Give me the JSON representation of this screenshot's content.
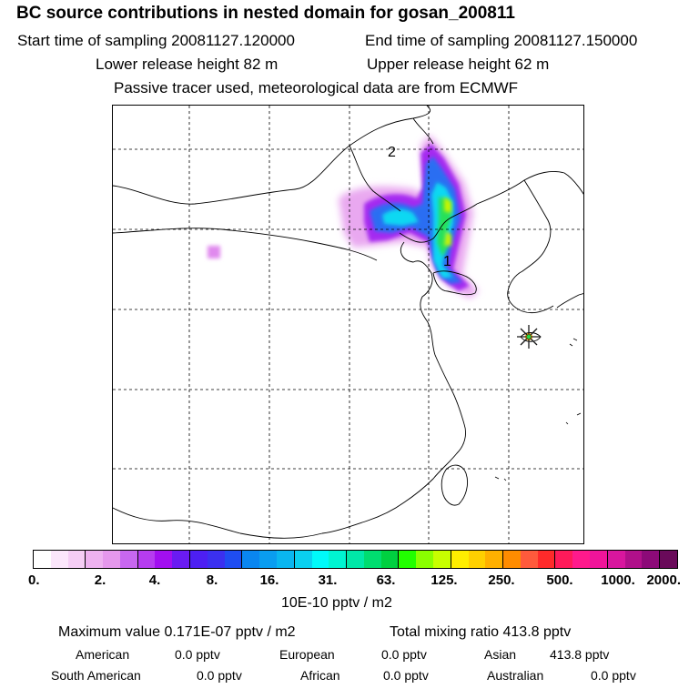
{
  "header": {
    "title": "BC  source contributions in nested domain for gosan_200811",
    "start_label": "Start time of sampling 20081127.120000",
    "end_label": "End time of sampling 20081127.150000",
    "lower_release": "Lower release height   82 m",
    "upper_release": "Upper release height   62 m",
    "note": "Passive tracer used, meteorological data are from ECMWF"
  },
  "map": {
    "annotations": {
      "label_1": "1",
      "label_2": "2"
    },
    "receptor_marker": "star-icon"
  },
  "colorbar": {
    "colors": [
      "#ffffff",
      "#fbe6fb",
      "#f5cdf5",
      "#eeb2f0",
      "#e598ec",
      "#c867f0",
      "#b63cf0",
      "#a20ff0",
      "#6a1bf2",
      "#4d1ff2",
      "#3b30f0",
      "#1f4df2",
      "#0a86f0",
      "#0a9df0",
      "#0ab6f0",
      "#0ad0f0",
      "#00fafa",
      "#00f5d2",
      "#00e8a8",
      "#00dd70",
      "#00d040",
      "#22ff00",
      "#8aff00",
      "#c8ff00",
      "#ffee00",
      "#ffd000",
      "#ffb000",
      "#ff8c00",
      "#ff5a3c",
      "#ff2a2a",
      "#ff1a5a",
      "#ff1a8c",
      "#f0149a",
      "#d8169e",
      "#b0108a",
      "#8c0a78",
      "#6a0a5a"
    ],
    "ticks": [
      "0.",
      "2.",
      "4.",
      "8.",
      "16.",
      "31.",
      "63.",
      "125.",
      "250.",
      "500.",
      "1000.",
      "2000."
    ],
    "unit": "10E-10 pptv / m2"
  },
  "stats": {
    "maximum": "Maximum value  0.171E-07 pptv / m2",
    "total": "Total mixing ratio      413.8 pptv",
    "regions": [
      {
        "name": "American",
        "value": "0.0 pptv"
      },
      {
        "name": "European",
        "value": "0.0 pptv"
      },
      {
        "name": "Asian",
        "value": "413.8 pptv"
      },
      {
        "name": "South American",
        "value": "0.0 pptv"
      },
      {
        "name": "African",
        "value": "0.0 pptv"
      },
      {
        "name": "Australian",
        "value": "0.0 pptv"
      }
    ]
  }
}
